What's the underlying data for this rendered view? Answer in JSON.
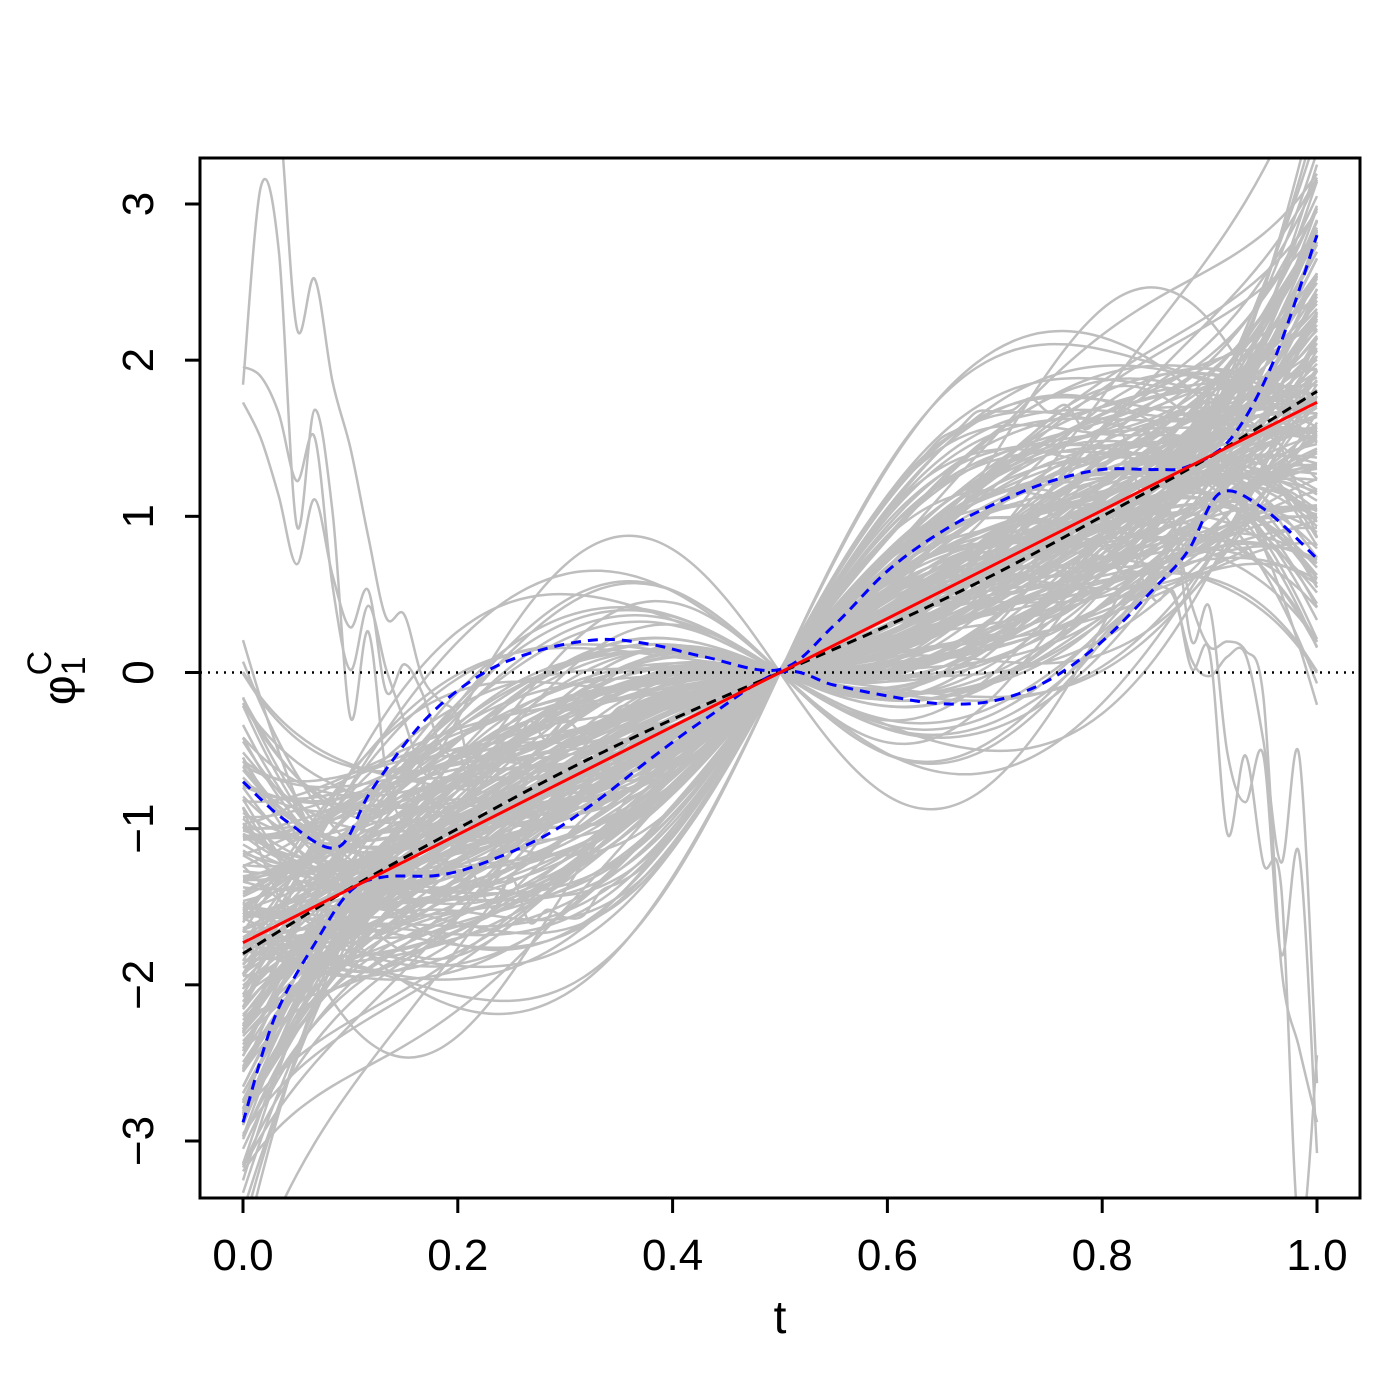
{
  "chart_data": {
    "type": "line",
    "xlabel": "t",
    "ylabel": {
      "symbol": "φ",
      "superscript": "C",
      "subscript": "1"
    },
    "xlim": [
      0.0,
      1.0
    ],
    "ylim": [
      -3.2,
      3.3
    ],
    "x_ticks": [
      0.0,
      0.2,
      0.4,
      0.6,
      0.8,
      1.0
    ],
    "x_tick_labels": [
      "0.0",
      "0.2",
      "0.4",
      "0.6",
      "0.8",
      "1.0"
    ],
    "y_ticks": [
      -3,
      -2,
      -1,
      0,
      1,
      2,
      3
    ],
    "y_tick_labels": [
      "−3",
      "−2",
      "−1",
      "0",
      "1",
      "2",
      "3"
    ],
    "grid": false,
    "reference_line": {
      "y": 0,
      "style": "dotted",
      "color": "#000000"
    },
    "colors": {
      "samples": "#bebebe",
      "truth": "#ff0000",
      "estimate": "#000000",
      "band": "#0000ff"
    },
    "series": [
      {
        "role": "truth",
        "style": "solid",
        "color": "#ff0000",
        "x": [
          0.0,
          1.0
        ],
        "y": [
          -1.73,
          1.73
        ]
      },
      {
        "role": "estimate",
        "style": "dashed",
        "color": "#000000",
        "x": [
          0.0,
          0.1,
          0.2,
          0.3,
          0.4,
          0.5,
          0.6,
          0.7,
          0.8,
          0.9,
          1.0
        ],
        "y": [
          -1.8,
          -1.38,
          -1.0,
          -0.63,
          -0.3,
          0.0,
          0.3,
          0.63,
          1.0,
          1.38,
          1.8
        ]
      },
      {
        "role": "upper-band",
        "style": "dashed",
        "color": "#0000ff",
        "x": [
          0.0,
          0.04,
          0.088,
          0.12,
          0.17,
          0.22,
          0.27,
          0.33,
          0.38,
          0.43,
          0.5,
          0.55,
          0.6,
          0.65,
          0.7,
          0.75,
          0.8,
          0.85,
          0.88,
          0.92,
          0.96,
          1.0
        ],
        "y": [
          -0.7,
          -0.95,
          -1.12,
          -0.75,
          -0.3,
          -0.02,
          0.13,
          0.21,
          0.18,
          0.1,
          0.02,
          0.3,
          0.65,
          0.9,
          1.08,
          1.22,
          1.3,
          1.3,
          1.32,
          1.5,
          2.0,
          2.8
        ]
      },
      {
        "role": "lower-band",
        "style": "dashed",
        "color": "#0000ff",
        "x": [
          0.0,
          0.03,
          0.07,
          0.1,
          0.13,
          0.18,
          0.22,
          0.28,
          0.33,
          0.38,
          0.43,
          0.5,
          0.55,
          0.6,
          0.65,
          0.7,
          0.75,
          0.8,
          0.85,
          0.88,
          0.91,
          0.95,
          1.0
        ],
        "y": [
          -2.88,
          -2.2,
          -1.7,
          -1.4,
          -1.31,
          -1.3,
          -1.23,
          -1.05,
          -0.82,
          -0.55,
          -0.3,
          0.0,
          -0.08,
          -0.15,
          -0.2,
          -0.18,
          -0.05,
          0.2,
          0.55,
          0.78,
          1.15,
          1.05,
          0.73
        ]
      }
    ],
    "sample_curves": {
      "color": "#bebebe",
      "description_count": 200,
      "x_range": [
        0.0,
        1.0
      ]
    }
  }
}
